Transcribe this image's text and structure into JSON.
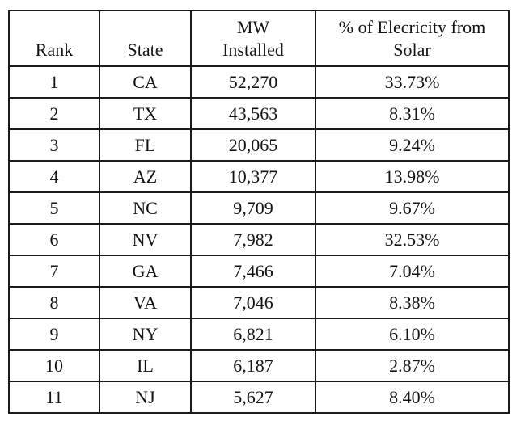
{
  "page": {
    "background_color": "#ffffff",
    "border_color": "#1a1a1a",
    "text_color": "#131313"
  },
  "table": {
    "headers": {
      "rank": "Rank",
      "state": "State",
      "mw": "MW\nInstalled",
      "percent": "% of Elecricity from\nSolar"
    },
    "rows": [
      {
        "rank": "1",
        "state": "CA",
        "mw": "52,270",
        "percent": "33.73%"
      },
      {
        "rank": "2",
        "state": "TX",
        "mw": "43,563",
        "percent": "8.31%"
      },
      {
        "rank": "3",
        "state": "FL",
        "mw": "20,065",
        "percent": "9.24%"
      },
      {
        "rank": "4",
        "state": "AZ",
        "mw": "10,377",
        "percent": "13.98%"
      },
      {
        "rank": "5",
        "state": "NC",
        "mw": "9,709",
        "percent": "9.67%"
      },
      {
        "rank": "6",
        "state": "NV",
        "mw": "7,982",
        "percent": "32.53%"
      },
      {
        "rank": "7",
        "state": "GA",
        "mw": "7,466",
        "percent": "7.04%"
      },
      {
        "rank": "8",
        "state": "VA",
        "mw": "7,046",
        "percent": "8.38%"
      },
      {
        "rank": "9",
        "state": "NY",
        "mw": "6,821",
        "percent": "6.10%"
      },
      {
        "rank": "10",
        "state": "IL",
        "mw": "6,187",
        "percent": "2.87%"
      },
      {
        "rank": "11",
        "state": "NJ",
        "mw": "5,627",
        "percent": "8.40%"
      }
    ]
  },
  "chart_data": {
    "type": "table",
    "title": "",
    "columns": [
      "Rank",
      "State",
      "MW Installed",
      "% of Elecricity from Solar"
    ],
    "rows": [
      {
        "rank": 1,
        "state": "CA",
        "mw_installed": 52270,
        "pct_electricity_from_solar": 33.73
      },
      {
        "rank": 2,
        "state": "TX",
        "mw_installed": 43563,
        "pct_electricity_from_solar": 8.31
      },
      {
        "rank": 3,
        "state": "FL",
        "mw_installed": 20065,
        "pct_electricity_from_solar": 9.24
      },
      {
        "rank": 4,
        "state": "AZ",
        "mw_installed": 10377,
        "pct_electricity_from_solar": 13.98
      },
      {
        "rank": 5,
        "state": "NC",
        "mw_installed": 9709,
        "pct_electricity_from_solar": 9.67
      },
      {
        "rank": 6,
        "state": "NV",
        "mw_installed": 7982,
        "pct_electricity_from_solar": 32.53
      },
      {
        "rank": 7,
        "state": "GA",
        "mw_installed": 7466,
        "pct_electricity_from_solar": 7.04
      },
      {
        "rank": 8,
        "state": "VA",
        "mw_installed": 7046,
        "pct_electricity_from_solar": 8.38
      },
      {
        "rank": 9,
        "state": "NY",
        "mw_installed": 6821,
        "pct_electricity_from_solar": 6.1
      },
      {
        "rank": 10,
        "state": "IL",
        "mw_installed": 6187,
        "pct_electricity_from_solar": 2.87
      },
      {
        "rank": 11,
        "state": "NJ",
        "mw_installed": 5627,
        "pct_electricity_from_solar": 8.4
      }
    ]
  }
}
